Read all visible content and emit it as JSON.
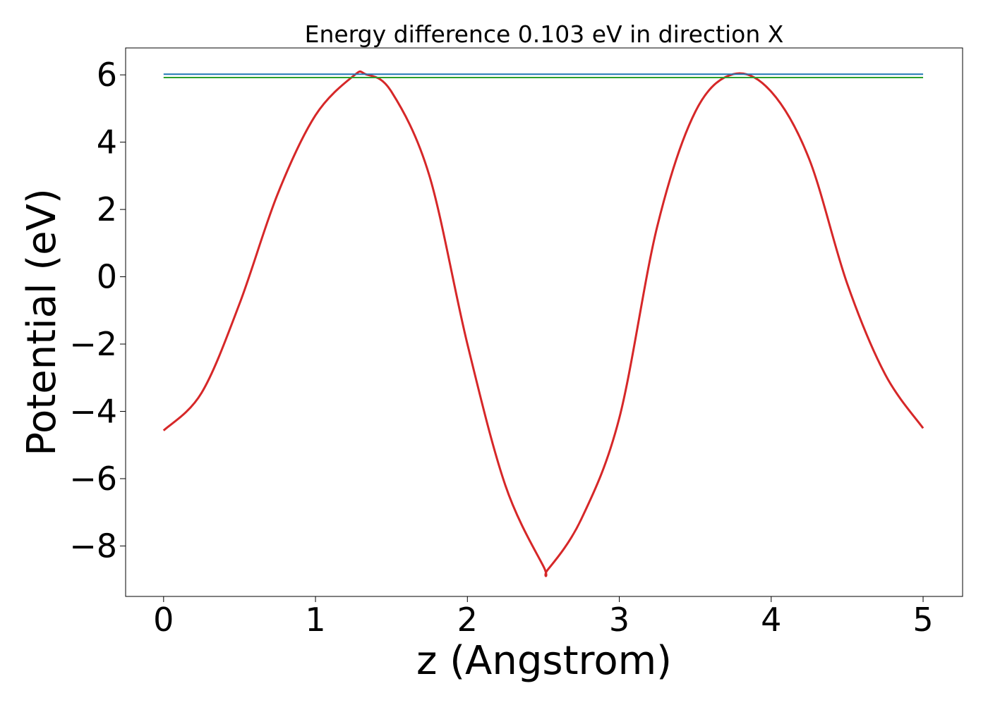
{
  "chart_data": {
    "type": "line",
    "title": "Energy difference 0.103 eV in direction X",
    "xlabel": "z (Angstrom)",
    "ylabel": "Potential (eV)",
    "xlim": [
      -0.25,
      5.26
    ],
    "ylim": [
      -9.5,
      6.8
    ],
    "xticks": [
      0,
      1,
      2,
      3,
      4,
      5
    ],
    "xtick_labels": [
      "0",
      "1",
      "2",
      "3",
      "4",
      "5"
    ],
    "yticks": [
      6,
      4,
      2,
      0,
      -2,
      -4,
      -6,
      -8
    ],
    "ytick_labels": [
      "6",
      "4",
      "2",
      "0",
      "−2",
      "−4",
      "−6",
      "−8"
    ],
    "grid": false,
    "series": [
      {
        "color": "#d62728",
        "x": [
          0,
          0.25,
          0.5,
          0.75,
          1.0,
          1.25,
          1.33,
          1.5,
          1.75,
          2.0,
          2.25,
          2.5,
          2.53,
          2.75,
          3.0,
          3.25,
          3.5,
          3.75,
          4.0,
          4.25,
          4.5,
          4.75,
          5.0
        ],
        "y": [
          -4.57,
          -3.45,
          -0.8,
          2.45,
          4.8,
          5.97,
          6.02,
          5.5,
          3.0,
          -2.0,
          -6.2,
          -8.6,
          -8.7,
          -7.2,
          -4.2,
          1.5,
          4.9,
          6.02,
          5.5,
          3.5,
          -0.2,
          -2.9,
          -4.5
        ]
      },
      {
        "color": "#1f77b4",
        "x": [
          0,
          5.0
        ],
        "y": [
          6.02,
          6.02
        ]
      },
      {
        "color": "#2ca02c",
        "x": [
          0,
          5.0
        ],
        "y": [
          5.92,
          5.92
        ]
      }
    ]
  }
}
